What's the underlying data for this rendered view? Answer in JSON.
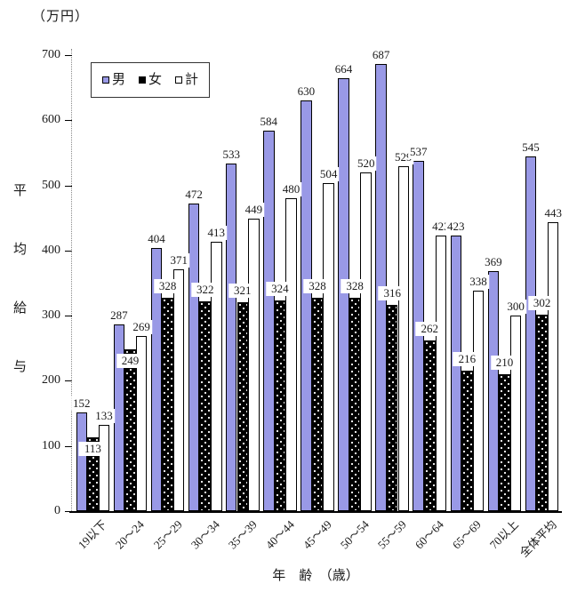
{
  "chart_data": {
    "type": "bar",
    "unit_label": "（万円）",
    "ylabel": "平均給与",
    "xlabel": "年　齢　（歳）",
    "ylim": [
      0,
      700
    ],
    "ytick_step": 100,
    "grid": false,
    "legend_position": "top-left",
    "categories": [
      "19以下",
      "20〜24",
      "25〜29",
      "30〜34",
      "35〜39",
      "40〜44",
      "45〜49",
      "50〜54",
      "55〜59",
      "60〜64",
      "65〜69",
      "70以上",
      "全体平均"
    ],
    "series": [
      {
        "name": "男",
        "key": "male",
        "color": "#9999e6",
        "pattern": "solid",
        "values": [
          152,
          287,
          404,
          472,
          533,
          584,
          630,
          664,
          687,
          537,
          423,
          369,
          545
        ]
      },
      {
        "name": "女",
        "key": "female",
        "color": "#000000",
        "pattern": "white-dots",
        "values": [
          113,
          249,
          328,
          322,
          321,
          324,
          328,
          328,
          316,
          262,
          216,
          210,
          302
        ]
      },
      {
        "name": "計",
        "key": "total",
        "color": "#ffffff",
        "pattern": "solid",
        "values": [
          133,
          269,
          371,
          413,
          449,
          480,
          504,
          520,
          529,
          423,
          338,
          300,
          443
        ]
      }
    ]
  }
}
